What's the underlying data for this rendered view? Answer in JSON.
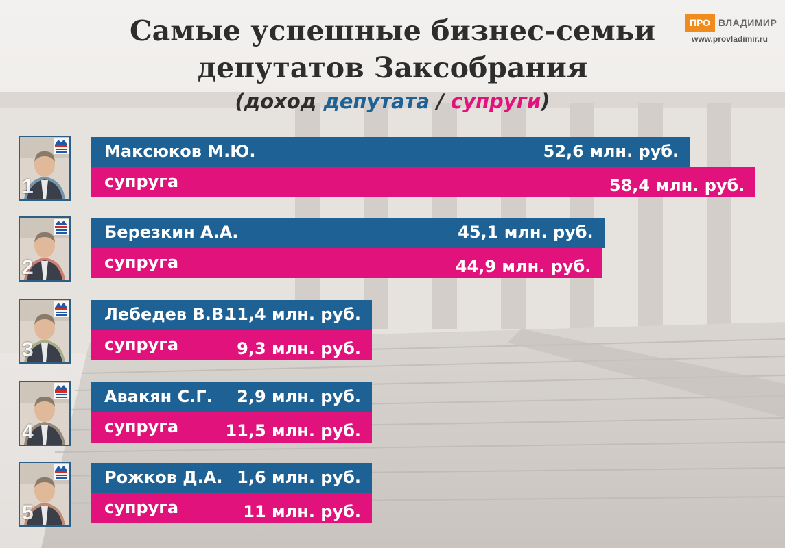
{
  "header": {
    "title_line1": "Самые успешные бизнес-семьи",
    "title_line2": "депутатов Заксобрания",
    "subtitle_pre": "(доход",
    "subtitle_deputy": "депутата",
    "subtitle_sep": "/",
    "subtitle_spouse": "супруги",
    "subtitle_post": ")"
  },
  "logo": {
    "pro": "ПРО",
    "city": "ВЛАДИМИР",
    "url": "www.provladimir.ru"
  },
  "colors": {
    "deputy": "#1e6194",
    "spouse": "#e1127b",
    "title": "#2d2d2d",
    "logo": "#f08c1e"
  },
  "chart_data": {
    "type": "bar",
    "orientation": "horizontal",
    "unit": "млн. руб.",
    "categories": [
      "Максюков М.Ю.",
      "Березкин А.А.",
      "Лебедев В.В.",
      "Авакян С.Г.",
      "Рожков Д.А."
    ],
    "ranks": [
      "1",
      "2",
      "3",
      "4",
      "5"
    ],
    "spouse_label": "супруга",
    "series": [
      {
        "values": [
          52.6,
          45.1,
          11.4,
          2.9,
          1.6
        ],
        "value_labels": [
          "52,6 млн. руб.",
          "45,1 млн. руб.",
          "11,4 млн. руб.",
          "2,9 млн. руб.",
          "1,6 млн. руб."
        ],
        "color": "#1e6194"
      },
      {
        "values": [
          58.4,
          44.9,
          9.3,
          11.5,
          11.0
        ],
        "value_labels": [
          "58,4 млн. руб.",
          "44,9 млн. руб.",
          "9,3 млн. руб.",
          "11,5 млн. руб.",
          "11 млн. руб."
        ],
        "color": "#e1127b"
      }
    ]
  }
}
